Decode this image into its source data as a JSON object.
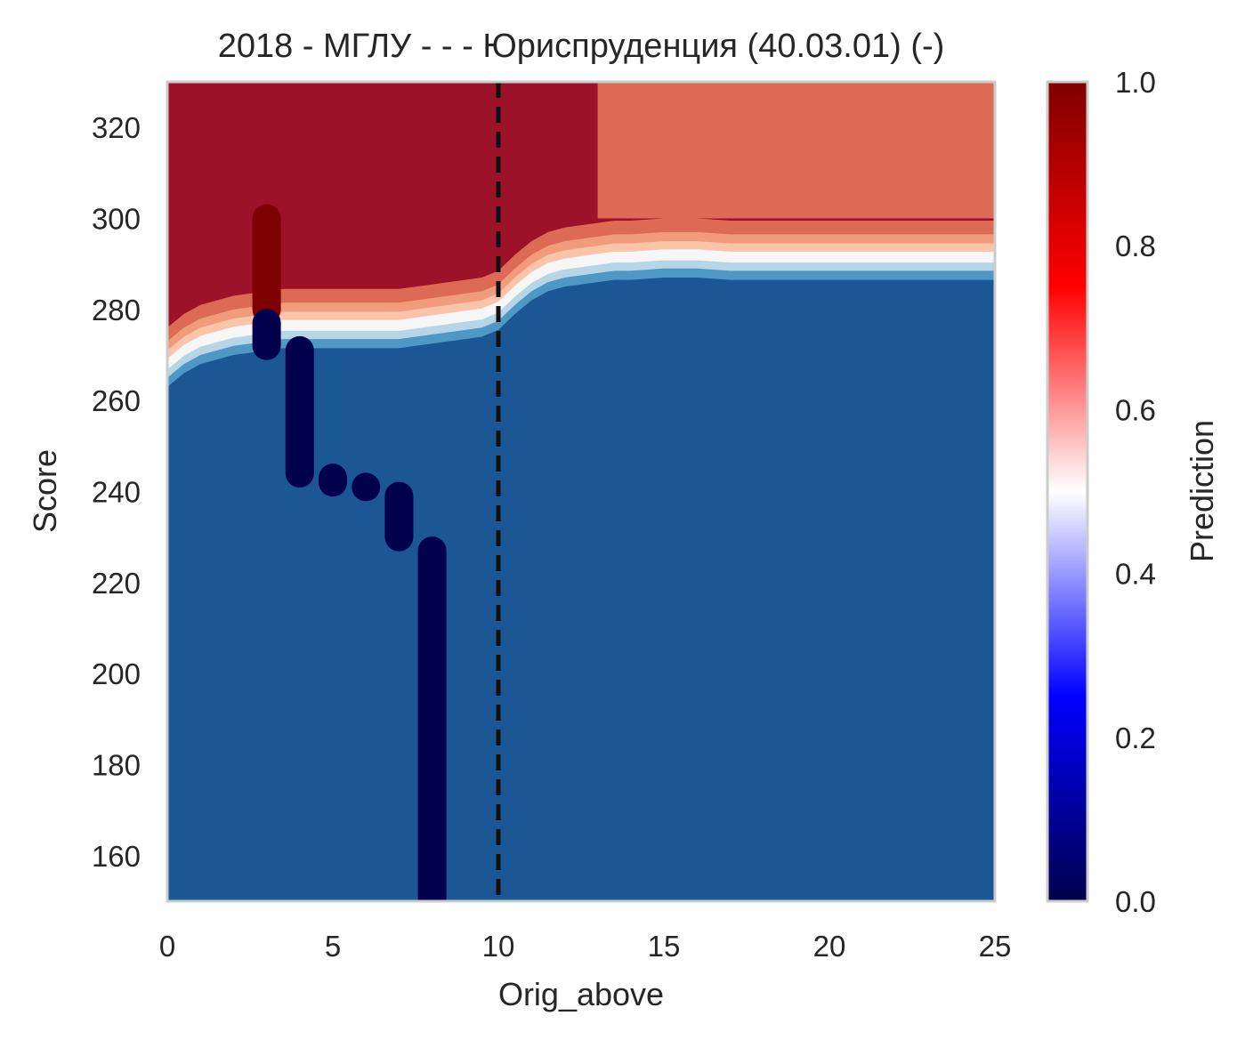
{
  "chart_data": {
    "type": "heatmap",
    "title": "2018 - МГЛУ - - - Юриспруденция (40.03.01) (-)",
    "xlabel": "Orig_above",
    "ylabel": "Score",
    "xlim": [
      0,
      25
    ],
    "ylim": [
      150,
      330
    ],
    "x_ticks": [
      0,
      5,
      10,
      15,
      20,
      25
    ],
    "y_ticks": [
      160,
      180,
      200,
      220,
      240,
      260,
      280,
      300,
      320
    ],
    "grid": false,
    "vertical_line": {
      "x": 10,
      "style": "dashed",
      "color": "#111111"
    },
    "colorbar": {
      "label": "Prediction",
      "range": [
        0,
        1
      ],
      "ticks": [
        "0.0",
        "0.2",
        "0.4",
        "0.6",
        "0.8",
        "1.0"
      ],
      "colormap": [
        "#00004c",
        "#0000ff",
        "#ffffff",
        "#ff0000",
        "#7f0000"
      ]
    },
    "contour_levels": [
      {
        "level": 0.1,
        "color": "#1b5795"
      },
      {
        "level": 0.3,
        "color": "#4f98c6"
      },
      {
        "level": 0.4,
        "color": "#b6d6e8"
      },
      {
        "level": 0.5,
        "color": "#f6f6f6"
      },
      {
        "level": 0.6,
        "color": "#f9c4aa"
      },
      {
        "level": 0.7,
        "color": "#f09c7b"
      },
      {
        "level": 0.8,
        "color": "#dc6a54"
      },
      {
        "level": 1.0,
        "color": "#9c1229"
      }
    ],
    "boundary": {
      "x": [
        0,
        0.5,
        1,
        1.5,
        2,
        2.5,
        3,
        3.5,
        4,
        4.5,
        5,
        5.5,
        6,
        6.5,
        7,
        7.5,
        8,
        8.5,
        9,
        9.5,
        10,
        10.5,
        11,
        11.5,
        12,
        12.5,
        13,
        13.5,
        14,
        15,
        16,
        17,
        18,
        20,
        22,
        25
      ],
      "y": [
        268,
        271,
        273,
        274,
        275,
        275.5,
        276,
        276.5,
        276.5,
        276.5,
        276.5,
        276.5,
        276.5,
        276.5,
        276.5,
        277,
        277.5,
        278,
        278.5,
        279,
        280.5,
        284,
        287,
        289,
        290,
        290.5,
        291,
        291.5,
        291.5,
        292,
        292,
        291.5,
        291.5,
        291.5,
        291.5,
        291.5
      ]
    },
    "region_top_right": {
      "x_from": 13,
      "y_from": 300,
      "value": 0.75
    },
    "points": [
      {
        "x": 3,
        "y_from": 280,
        "y_to": 300,
        "value": 1
      },
      {
        "x": 3,
        "y_from": 272,
        "y_to": 277,
        "value": 0
      },
      {
        "x": 4,
        "y_from": 244,
        "y_to": 271,
        "value": 0
      },
      {
        "x": 5,
        "y_from": 242,
        "y_to": 243,
        "value": 0
      },
      {
        "x": 6,
        "y_from": 241,
        "y_to": 241,
        "value": 0
      },
      {
        "x": 7,
        "y_from": 230,
        "y_to": 239,
        "value": 0
      },
      {
        "x": 8,
        "y_from": 150,
        "y_to": 227,
        "value": 0
      }
    ]
  }
}
